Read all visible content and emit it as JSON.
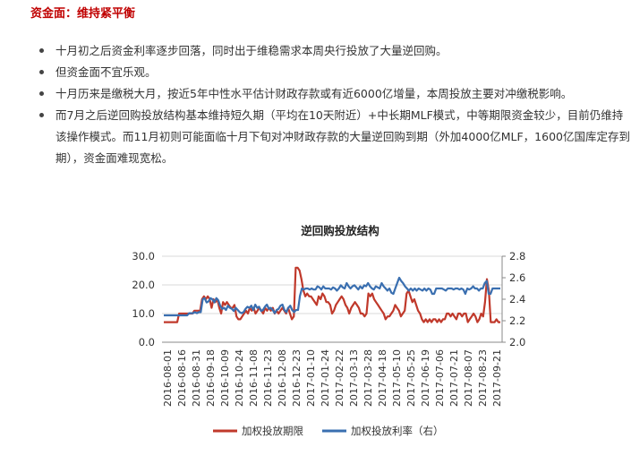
{
  "section": {
    "heading": "资金面：维持紧平衡"
  },
  "bullets": [
    "十月初之后资金利率逐步回落，同时出于维稳需求本周央行投放了大量逆回购。",
    "但资金面不宜乐观。",
    "十月历来是缴税大月，按近5年中性水平估计财政存款或有近6000亿增量，本周投放主要对冲缴税影响。",
    "而7月之后逆回购投放结构基本维持短久期（平均在10天附近）+中长期MLF模式，中等期限资金较少，目前仍维持该操作模式。而11月初则可能面临十月下旬对冲财政存款的大量逆回购到期（外加4000亿MLF，1600亿国库定存到期），资金面难现宽松。"
  ],
  "colors": {
    "heading": "#c00000",
    "series_left": "#c0392b",
    "series_right": "#3a6fb0"
  },
  "chart_data": {
    "type": "line",
    "title": "逆回购投放结构",
    "x_tick_labels": [
      "2016-08-01",
      "2016-08-16",
      "2016-08-31",
      "2016-09-18",
      "2016-10-09",
      "2016-10-24",
      "2016-11-08",
      "2016-11-23",
      "2016-12-08",
      "2016-12-23",
      "2017-01-10",
      "2017-01-24",
      "2017-02-22",
      "2017-03-13",
      "2017-03-28",
      "2017-04-18",
      "2017-05-10",
      "2017-05-25",
      "2017-06-19",
      "2017-07-06",
      "2017-07-21",
      "2017-08-07",
      "2017-08-23",
      "2017-09-21"
    ],
    "y_left": {
      "ticks": [
        "0.0",
        "10.0",
        "20.0",
        "30.0"
      ],
      "range": [
        0,
        30
      ]
    },
    "y_right": {
      "ticks": [
        "2.0",
        "2.2",
        "2.4",
        "2.6",
        "2.8"
      ],
      "range": [
        2.0,
        2.8
      ]
    },
    "legend_position": "bottom",
    "series": [
      {
        "name": "加权投放期限",
        "axis": "left",
        "values": [
          7,
          7,
          7,
          7,
          7,
          7,
          7,
          7,
          10,
          10,
          10,
          10,
          10,
          10,
          10,
          10,
          11,
          11,
          11,
          11,
          15,
          16,
          15,
          16,
          15,
          12,
          15,
          14,
          15,
          12,
          10,
          14,
          13,
          14,
          13,
          12,
          12,
          13,
          9,
          8,
          8,
          9,
          10,
          11,
          10,
          12,
          11,
          12,
          10,
          11,
          12,
          11,
          10,
          12,
          11,
          12,
          11,
          12,
          10,
          11,
          10,
          11,
          12,
          11,
          10,
          12,
          10,
          8,
          9,
          26,
          26,
          25,
          22,
          18,
          16,
          17,
          16,
          16,
          15,
          14,
          13,
          16,
          15,
          17,
          16,
          14,
          14,
          13,
          10,
          11,
          13,
          14,
          15,
          16,
          15,
          13,
          12,
          10,
          12,
          13,
          14,
          13,
          12,
          10,
          10,
          9,
          10,
          17,
          16,
          17,
          15,
          14,
          13,
          12,
          11,
          10,
          8,
          9,
          9,
          10,
          11,
          13,
          12,
          11,
          9,
          10,
          11,
          17,
          18,
          16,
          14,
          15,
          13,
          11,
          10,
          8,
          7,
          8,
          7,
          8,
          7,
          8,
          8,
          7,
          8,
          7,
          8,
          8,
          10,
          10,
          9,
          10,
          9,
          8,
          10,
          10,
          9,
          10,
          10,
          7,
          8,
          9,
          10,
          9,
          7,
          8,
          10,
          9,
          14,
          22,
          18,
          7,
          7,
          7,
          8,
          7,
          7
        ]
      },
      {
        "name": "加权投放利率（右）",
        "axis": "right",
        "values": [
          2.25,
          2.25,
          2.25,
          2.25,
          2.25,
          2.25,
          2.25,
          2.25,
          2.25,
          2.25,
          2.25,
          2.25,
          2.25,
          2.27,
          2.27,
          2.27,
          2.28,
          2.27,
          2.28,
          2.28,
          2.4,
          2.41,
          2.37,
          2.38,
          2.41,
          2.4,
          2.37,
          2.41,
          2.39,
          2.34,
          2.31,
          2.32,
          2.3,
          2.34,
          2.32,
          2.31,
          2.29,
          2.32,
          2.3,
          2.28,
          2.27,
          2.28,
          2.31,
          2.33,
          2.32,
          2.34,
          2.3,
          2.35,
          2.32,
          2.33,
          2.29,
          2.3,
          2.33,
          2.35,
          2.31,
          2.32,
          2.3,
          2.27,
          2.3,
          2.31,
          2.34,
          2.35,
          2.3,
          2.28,
          2.32,
          2.34,
          2.3,
          2.28,
          2.3,
          2.3,
          2.43,
          2.5,
          2.49,
          2.5,
          2.5,
          2.49,
          2.5,
          2.49,
          2.49,
          2.52,
          2.51,
          2.49,
          2.52,
          2.5,
          2.5,
          2.5,
          2.49,
          2.51,
          2.5,
          2.48,
          2.5,
          2.53,
          2.51,
          2.5,
          2.55,
          2.52,
          2.5,
          2.52,
          2.53,
          2.51,
          2.49,
          2.52,
          2.5,
          2.53,
          2.52,
          2.55,
          2.52,
          2.5,
          2.49,
          2.52,
          2.51,
          2.5,
          2.55,
          2.52,
          2.5,
          2.48,
          2.5,
          2.46,
          2.45,
          2.5,
          2.55,
          2.6,
          2.57,
          2.55,
          2.52,
          2.5,
          2.48,
          2.5,
          2.48,
          2.5,
          2.48,
          2.5,
          2.49,
          2.48,
          2.5,
          2.48,
          2.5,
          2.49,
          2.45,
          2.45,
          2.5,
          2.5,
          2.5,
          2.5,
          2.49,
          2.48,
          2.5,
          2.5,
          2.5,
          2.49,
          2.5,
          2.5,
          2.49,
          2.5,
          2.49,
          2.45,
          2.5,
          2.49,
          2.5,
          2.52,
          2.5,
          2.5,
          2.48,
          2.5,
          2.5,
          2.55,
          2.57,
          2.45,
          2.45,
          2.5,
          2.5,
          2.5,
          2.5,
          2.5
        ]
      }
    ]
  }
}
